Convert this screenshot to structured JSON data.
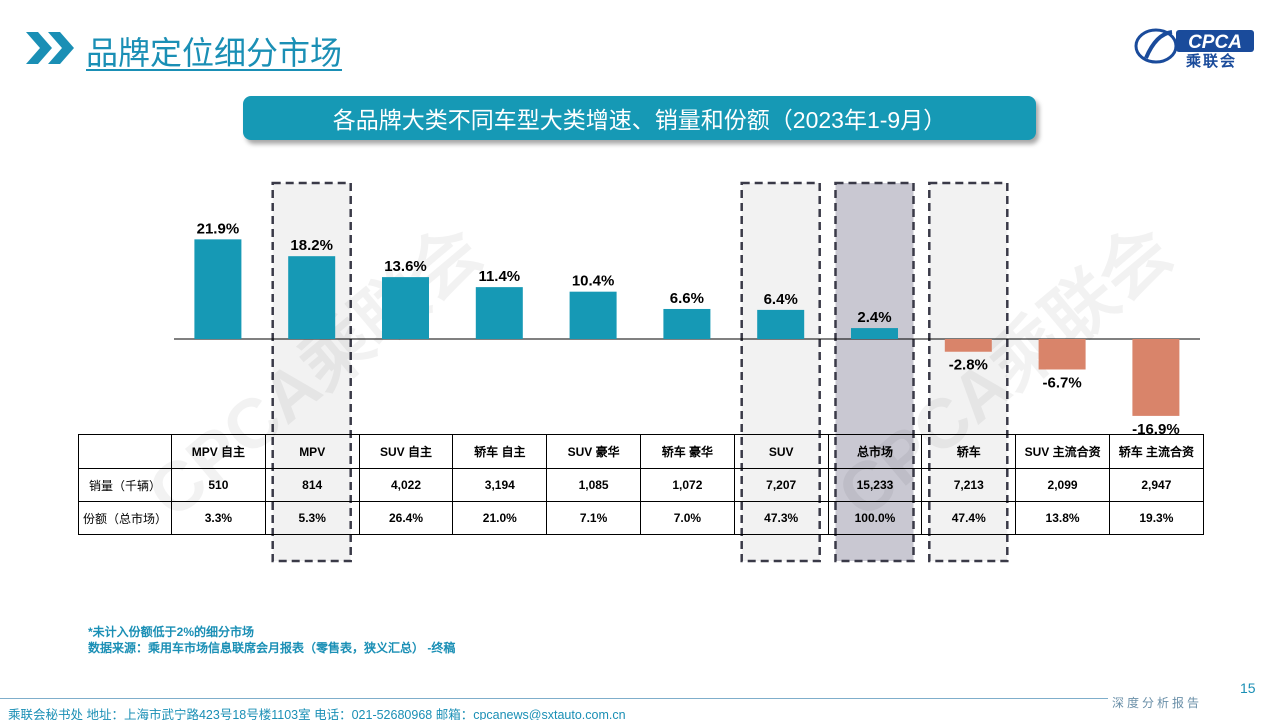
{
  "header": {
    "title": "品牌定位细分市场"
  },
  "logo": {
    "brand": "CPCA",
    "label": "乘联会"
  },
  "subtitle": "各品牌大类不同车型大类增速、销量和份额（2023年1-9月）",
  "watermark": "CPCA乘联会",
  "chart_data": {
    "type": "bar",
    "categories": [
      "MPV 自主",
      "MPV",
      "SUV 自主",
      "轿车 自主",
      "SUV 豪华",
      "轿车 豪华",
      "SUV",
      "总市场",
      "轿车",
      "SUV 主流合资",
      "轿车 主流合资"
    ],
    "values": [
      21.9,
      18.2,
      13.6,
      11.4,
      10.4,
      6.6,
      6.4,
      2.4,
      -2.8,
      -6.7,
      -16.9
    ],
    "value_labels": [
      "21.9%",
      "18.2%",
      "13.6%",
      "11.4%",
      "10.4%",
      "6.6%",
      "6.4%",
      "2.4%",
      "-2.8%",
      "-6.7%",
      "-16.9%"
    ],
    "unit": "%",
    "colors": {
      "positive": "#1699b5",
      "negative": "#d9846a"
    },
    "highlighted": [
      "MPV",
      "SUV",
      "总市场",
      "轿车"
    ]
  },
  "table": {
    "rows": [
      {
        "label": "销量（千辆）",
        "values": [
          "510",
          "814",
          "4,022",
          "3,194",
          "1,085",
          "1,072",
          "7,207",
          "15,233",
          "7,213",
          "2,099",
          "2,947"
        ]
      },
      {
        "label": "份额（总市场）",
        "values": [
          "3.3%",
          "5.3%",
          "26.4%",
          "21.0%",
          "7.1%",
          "7.0%",
          "47.3%",
          "100.0%",
          "47.4%",
          "13.8%",
          "19.3%"
        ]
      }
    ]
  },
  "footnote": {
    "line1": "*未计入份额低于2%的细分市场",
    "line2": "数据来源：乘用车市场信息联席会月报表（零售表，狭义汇总） -终稿"
  },
  "page_number": "15",
  "report_tag": "深度分析报告",
  "footer": "乘联会秘书处   地址：上海市武宁路423号18号楼1103室  电话：021-52680968   邮箱：cpcanews@sxtauto.com.cn"
}
